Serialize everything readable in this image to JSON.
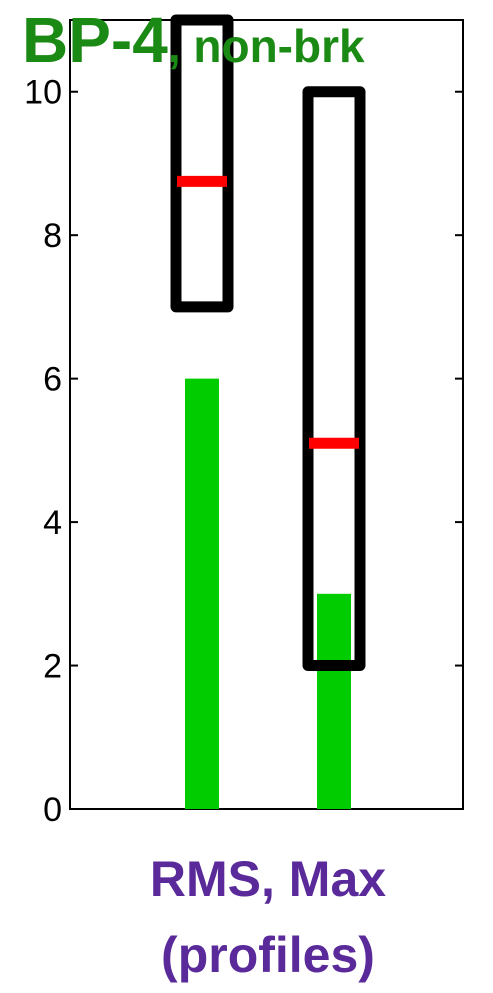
{
  "chart_data": {
    "type": "bar",
    "title": {
      "main": "BP-4",
      "sub": ", non-brk",
      "color": "#1a8a14"
    },
    "xlabel": {
      "line1": "RMS, Max",
      "line2": "(profiles)",
      "color": "#5a2a9a"
    },
    "ylim": [
      0,
      11
    ],
    "yticks": [
      0,
      2,
      4,
      6,
      8,
      10
    ],
    "grid": false,
    "categories": [
      "RMS",
      "Max"
    ],
    "bars": {
      "values": [
        6,
        3
      ],
      "color": "#00cc00"
    },
    "ranges": [
      {
        "low": 7,
        "high": 11,
        "median": 8.75
      },
      {
        "low": 2,
        "high": 10,
        "median": 5.1
      }
    ],
    "range_color": "#000000",
    "median_color": "#ff0000"
  }
}
